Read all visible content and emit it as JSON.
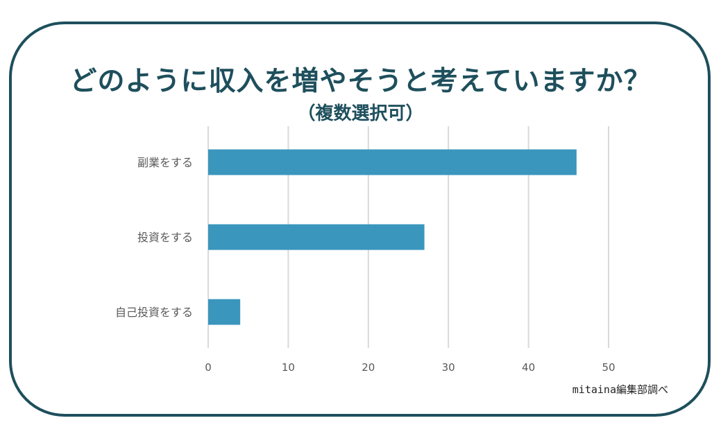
{
  "title": "どのように収入を増やそうと考えていますか？",
  "subtitle": "（複数選択可）",
  "source": "mitaina編集部調べ",
  "colors": {
    "frame": "#1e4f5c",
    "title": "#1e4f5c",
    "bar": "#3a96bd",
    "grid": "#d9d9d9",
    "label": "#595959"
  },
  "chart_data": {
    "type": "bar",
    "orientation": "horizontal",
    "categories": [
      "副業をする",
      "投資をする",
      "自己投資をする"
    ],
    "values": [
      46,
      27,
      4
    ],
    "xlim": [
      0,
      50
    ],
    "xticks": [
      0,
      10,
      20,
      30,
      40,
      50
    ],
    "grid": "vertical",
    "legend": "none"
  }
}
